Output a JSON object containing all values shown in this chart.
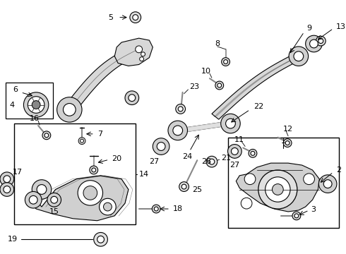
{
  "bg_color": "#ffffff",
  "fig_width": 4.9,
  "fig_height": 3.6,
  "dpi": 100
}
